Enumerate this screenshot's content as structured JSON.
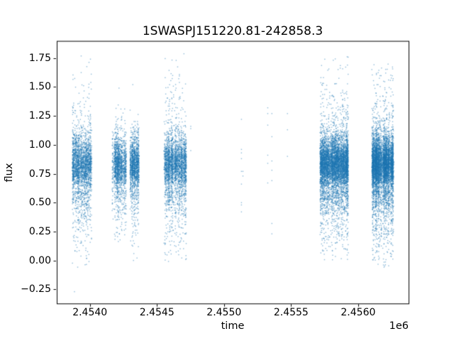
{
  "figure": {
    "title": "1SWASPJ151220.81-242858.3",
    "xlabel": "time",
    "ylabel": "flux",
    "x_offset_label": "1e6"
  },
  "chart_data": {
    "type": "scatter",
    "title": "1SWASPJ151220.81-242858.3",
    "xlabel": "time",
    "ylabel": "flux",
    "x_offset_factor": "1e6",
    "grid": false,
    "legend": null,
    "marker_color": "#1f77b4",
    "marker_alpha": 0.5,
    "marker_size_px": 1.4,
    "xlim": [
      2453753,
      2456376
    ],
    "ylim": [
      -0.372,
      1.898
    ],
    "xticks": {
      "values": [
        2454000,
        2454500,
        2455000,
        2455500,
        2456000
      ],
      "labels": [
        "2.4540",
        "2.4545",
        "2.4550",
        "2.4555",
        "2.4560"
      ]
    },
    "yticks": {
      "values": [
        -0.25,
        0.0,
        0.25,
        0.5,
        0.75,
        1.0,
        1.25,
        1.5,
        1.75
      ],
      "labels": [
        "−0.25",
        "0.00",
        "0.25",
        "0.50",
        "0.75",
        "1.00",
        "1.25",
        "1.50",
        "1.75"
      ]
    },
    "flux_core_mean": 0.83,
    "flux_core_sigma": 0.115,
    "clusters": [
      {
        "t_start": 2453870,
        "t_end": 2454012,
        "points": 2300,
        "flux_min": -0.06,
        "flux_max": 1.82,
        "upper_tail_frac": 0.05,
        "lower_tail_frac": 0.12
      },
      {
        "t_start": 2454166,
        "t_end": 2454271,
        "points": 1500,
        "flux_min": 0.16,
        "flux_max": 1.38,
        "upper_tail_frac": 0.03,
        "lower_tail_frac": 0.1
      },
      {
        "t_start": 2454300,
        "t_end": 2454366,
        "points": 1200,
        "flux_min": 0.01,
        "flux_max": 1.33,
        "upper_tail_frac": 0.03,
        "lower_tail_frac": 0.1
      },
      {
        "t_start": 2454552,
        "t_end": 2454721,
        "points": 3000,
        "flux_min": -0.04,
        "flux_max": 1.8,
        "upper_tail_frac": 0.05,
        "lower_tail_frac": 0.12
      },
      {
        "t_start": 2455715,
        "t_end": 2455926,
        "points": 5800,
        "flux_min": -0.01,
        "flux_max": 1.8,
        "upper_tail_frac": 0.05,
        "lower_tail_frac": 0.11
      },
      {
        "t_start": 2456101,
        "t_end": 2456265,
        "points": 5800,
        "flux_min": -0.06,
        "flux_max": 1.8,
        "upper_tail_frac": 0.05,
        "lower_tail_frac": 0.11
      }
    ],
    "sparse_points": [
      [
        2453885,
        -0.27
      ],
      [
        2454217,
        1.49
      ],
      [
        2454320,
        1.52
      ],
      [
        2454325,
        0.0
      ],
      [
        2454752,
        1.16
      ],
      [
        2454752,
        1.14
      ],
      [
        2454752,
        0.95
      ],
      [
        2455130,
        1.22
      ],
      [
        2455130,
        0.96
      ],
      [
        2455130,
        0.93
      ],
      [
        2455130,
        0.88
      ],
      [
        2455130,
        0.77
      ],
      [
        2455130,
        0.66
      ],
      [
        2455130,
        0.5
      ],
      [
        2455130,
        0.48
      ],
      [
        2455130,
        0.42
      ],
      [
        2455141,
        0.77
      ],
      [
        2455141,
        0.73
      ],
      [
        2455326,
        1.32
      ],
      [
        2455326,
        1.27
      ],
      [
        2455326,
        1.17
      ],
      [
        2455326,
        0.91
      ],
      [
        2455326,
        0.84
      ],
      [
        2455326,
        0.67
      ],
      [
        2455357,
        1.27
      ],
      [
        2455357,
        1.07
      ],
      [
        2455357,
        0.86
      ],
      [
        2455357,
        0.78
      ],
      [
        2455357,
        0.69
      ],
      [
        2455357,
        0.32
      ],
      [
        2455357,
        0.23
      ],
      [
        2455473,
        1.27
      ],
      [
        2455473,
        1.13
      ],
      [
        2455473,
        0.9
      ]
    ]
  }
}
